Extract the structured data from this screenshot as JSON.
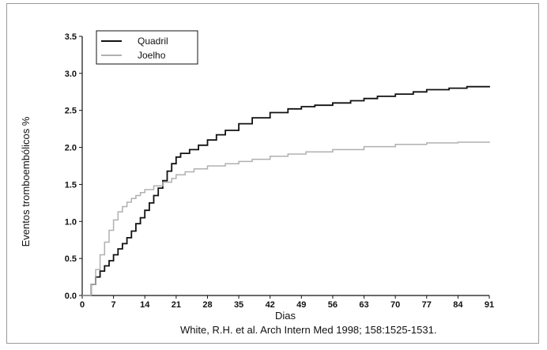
{
  "chart_data": {
    "type": "line",
    "step": true,
    "xlabel": "Dias",
    "ylabel": "Eventos tromboembólicos %",
    "xlim": [
      0,
      91
    ],
    "ylim": [
      0,
      3.5
    ],
    "xticks": [
      0,
      7,
      14,
      21,
      28,
      35,
      42,
      49,
      56,
      63,
      70,
      77,
      84,
      91
    ],
    "yticks": [
      "0.0",
      "0.5",
      "1.0",
      "1.5",
      "2.0",
      "2.5",
      "3.0",
      "3.5"
    ],
    "grid": false,
    "legend_position": "top-left",
    "series": [
      {
        "name": "Quadril",
        "color": "#111111",
        "x": [
          0,
          1,
          2,
          3,
          4,
          5,
          6,
          7,
          8,
          9,
          10,
          11,
          12,
          13,
          14,
          15,
          16,
          17,
          18,
          19,
          20,
          21,
          22,
          24,
          26,
          28,
          30,
          32,
          35,
          38,
          42,
          46,
          49,
          52,
          56,
          60,
          63,
          66,
          70,
          74,
          77,
          82,
          86,
          91
        ],
        "y": [
          0,
          0,
          0.15,
          0.25,
          0.33,
          0.4,
          0.47,
          0.55,
          0.63,
          0.7,
          0.78,
          0.87,
          0.97,
          1.05,
          1.15,
          1.25,
          1.35,
          1.45,
          1.55,
          1.68,
          1.78,
          1.87,
          1.92,
          1.97,
          2.03,
          2.1,
          2.17,
          2.23,
          2.32,
          2.4,
          2.47,
          2.52,
          2.55,
          2.57,
          2.6,
          2.63,
          2.66,
          2.69,
          2.72,
          2.75,
          2.78,
          2.8,
          2.82,
          2.83
        ]
      },
      {
        "name": "Joelho",
        "color": "#b0b0b0",
        "x": [
          0,
          1,
          2,
          3,
          4,
          5,
          6,
          7,
          8,
          9,
          10,
          11,
          12,
          13,
          14,
          16,
          18,
          20,
          21,
          23,
          25,
          28,
          32,
          35,
          38,
          42,
          46,
          50,
          56,
          63,
          70,
          77,
          84,
          91
        ],
        "y": [
          0,
          0,
          0.15,
          0.35,
          0.55,
          0.72,
          0.88,
          1.02,
          1.13,
          1.2,
          1.26,
          1.31,
          1.35,
          1.39,
          1.43,
          1.48,
          1.53,
          1.58,
          1.63,
          1.67,
          1.71,
          1.75,
          1.78,
          1.81,
          1.84,
          1.88,
          1.91,
          1.94,
          1.97,
          2.01,
          2.04,
          2.06,
          2.07,
          2.08
        ]
      }
    ]
  },
  "citation": "White, R.H. et al. Arch Intern Med 1998; 158:1525-1531."
}
